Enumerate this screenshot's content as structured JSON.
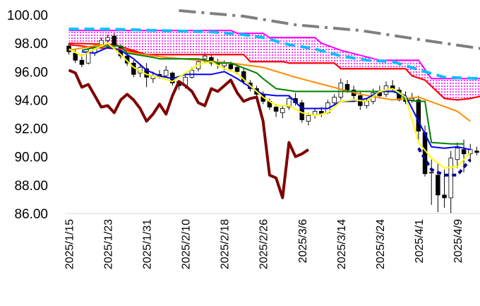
{
  "chart_data": {
    "type": "candlestick",
    "ylim": [
      86.0,
      100.0
    ],
    "y_ticks": [
      "86.00",
      "88.00",
      "90.00",
      "92.00",
      "94.00",
      "96.00",
      "98.00",
      "100.00"
    ],
    "x_ticks": [
      "2025/1/15",
      "2025/1/23",
      "2025/1/31",
      "2025/2/10",
      "2025/2/18",
      "2025/2/26",
      "2025/3/6",
      "2025/3/14",
      "2025/3/24",
      "2025/4/1",
      "2025/4/9"
    ],
    "grid": false,
    "n_slots": 64,
    "candles": [
      [
        97.8,
        98.0,
        97.2,
        97.4
      ],
      [
        97.3,
        97.6,
        96.6,
        96.8
      ],
      [
        96.8,
        97.2,
        96.3,
        96.5
      ],
      [
        96.6,
        97.6,
        96.5,
        97.4
      ],
      [
        97.3,
        97.9,
        97.1,
        97.7
      ],
      [
        97.8,
        98.4,
        97.6,
        98.2
      ],
      [
        98.2,
        98.6,
        97.9,
        98.4
      ],
      [
        98.5,
        98.7,
        97.8,
        97.9
      ],
      [
        97.8,
        97.9,
        96.9,
        97.1
      ],
      [
        97.1,
        97.3,
        96.4,
        96.6
      ],
      [
        96.6,
        96.8,
        95.6,
        95.8
      ],
      [
        95.9,
        96.5,
        95.6,
        96.3
      ],
      [
        96.2,
        96.6,
        94.9,
        95.6
      ],
      [
        95.5,
        96.0,
        95.2,
        95.7
      ],
      [
        95.8,
        96.1,
        95.5,
        95.6
      ],
      [
        95.7,
        96.4,
        95.6,
        96.1
      ],
      [
        95.9,
        96.0,
        95.0,
        95.2
      ],
      [
        95.3,
        95.4,
        94.7,
        95.0
      ],
      [
        95.0,
        95.8,
        94.8,
        95.6
      ],
      [
        95.6,
        96.3,
        95.5,
        96.1
      ],
      [
        96.2,
        96.9,
        96.0,
        96.7
      ],
      [
        96.9,
        97.3,
        96.6,
        97.1
      ],
      [
        97.0,
        97.2,
        96.4,
        96.6
      ],
      [
        96.6,
        96.9,
        96.2,
        96.5
      ],
      [
        96.4,
        96.8,
        96.1,
        96.6
      ],
      [
        96.5,
        96.7,
        96.0,
        96.2
      ],
      [
        96.3,
        96.5,
        95.8,
        96.0
      ],
      [
        96.0,
        96.2,
        95.1,
        95.3
      ],
      [
        95.2,
        95.4,
        94.6,
        94.8
      ],
      [
        94.8,
        95.0,
        94.2,
        94.4
      ],
      [
        94.4,
        94.6,
        93.7,
        93.9
      ],
      [
        93.9,
        94.1,
        93.3,
        93.5
      ],
      [
        93.5,
        93.7,
        92.8,
        93.2
      ],
      [
        93.1,
        93.6,
        92.7,
        93.4
      ],
      [
        93.5,
        94.3,
        93.3,
        94.1
      ],
      [
        94.1,
        94.5,
        93.6,
        93.8
      ],
      [
        93.8,
        94.0,
        92.4,
        92.6
      ],
      [
        92.5,
        93.1,
        92.2,
        92.9
      ],
      [
        92.9,
        93.4,
        92.7,
        93.2
      ],
      [
        93.2,
        93.5,
        92.8,
        93.0
      ],
      [
        93.1,
        94.0,
        93.0,
        93.8
      ],
      [
        93.8,
        94.4,
        93.6,
        94.2
      ],
      [
        94.2,
        95.5,
        94.0,
        95.2
      ],
      [
        95.1,
        95.4,
        94.5,
        94.7
      ],
      [
        94.7,
        95.0,
        94.0,
        94.3
      ],
      [
        94.3,
        94.6,
        93.3,
        93.6
      ],
      [
        93.6,
        94.1,
        93.4,
        93.9
      ],
      [
        93.9,
        94.8,
        93.7,
        94.5
      ],
      [
        94.5,
        95.0,
        94.1,
        94.3
      ],
      [
        94.4,
        95.3,
        94.2,
        95.0
      ],
      [
        95.0,
        95.4,
        94.6,
        94.8
      ],
      [
        94.7,
        94.9,
        93.9,
        94.0
      ],
      [
        94.0,
        94.6,
        93.7,
        93.9
      ],
      [
        94.0,
        94.5,
        93.8,
        94.1
      ],
      [
        94.0,
        94.3,
        91.2,
        91.8
      ],
      [
        91.7,
        92.2,
        88.6,
        88.8
      ],
      [
        88.9,
        89.8,
        86.6,
        88.9
      ],
      [
        88.7,
        89.6,
        86.1,
        87.3
      ],
      [
        87.3,
        89.1,
        86.4,
        87.1
      ],
      [
        87.1,
        90.4,
        86.0,
        89.9
      ],
      [
        89.8,
        91.0,
        89.2,
        90.6
      ],
      [
        90.5,
        91.2,
        88.9,
        90.2
      ],
      [
        90.2,
        90.9,
        89.6,
        90.5
      ],
      [
        90.4,
        90.7,
        90.1,
        90.3
      ]
    ],
    "series": [
      {
        "color": "#7f0000",
        "dash": "solid",
        "width": 4,
        "points": [
          [
            0,
            96.1
          ],
          [
            1,
            95.9
          ],
          [
            2,
            94.9
          ],
          [
            3,
            95.1
          ],
          [
            4,
            94.3
          ],
          [
            5,
            93.5
          ],
          [
            6,
            93.6
          ],
          [
            7,
            93.1
          ],
          [
            8,
            94.0
          ],
          [
            9,
            94.4
          ],
          [
            10,
            94.0
          ],
          [
            11,
            93.4
          ],
          [
            12,
            92.5
          ],
          [
            13,
            93.0
          ],
          [
            14,
            93.7
          ],
          [
            15,
            93.0
          ],
          [
            16,
            94.3
          ],
          [
            17,
            95.3
          ],
          [
            18,
            95.0
          ],
          [
            19,
            94.6
          ],
          [
            20,
            93.8
          ],
          [
            21,
            93.6
          ],
          [
            22,
            94.8
          ],
          [
            23,
            94.6
          ],
          [
            24,
            95.0
          ],
          [
            25,
            95.4
          ],
          [
            26,
            94.5
          ],
          [
            27,
            93.9
          ],
          [
            28,
            94.1
          ],
          [
            29,
            94.2
          ],
          [
            30,
            92.5
          ],
          [
            31,
            88.7
          ],
          [
            32,
            88.5
          ],
          [
            33,
            87.1
          ],
          [
            34,
            91.0
          ],
          [
            35,
            90.0
          ],
          [
            36,
            90.2
          ],
          [
            37,
            90.5
          ]
        ]
      },
      {
        "color": "#00008b",
        "dash": "6,5",
        "width": 4,
        "points": [
          [
            54,
            90.6
          ],
          [
            56,
            89.1
          ],
          [
            58,
            88.7
          ],
          [
            60,
            88.7
          ],
          [
            62,
            89.8
          ]
        ]
      },
      {
        "color": "#7f7f7f",
        "dash": "24,8,4,8",
        "width": 4,
        "points": [
          [
            17,
            100.3
          ],
          [
            27,
            99.9
          ],
          [
            35,
            99.3
          ],
          [
            45,
            98.9
          ],
          [
            55,
            98.2
          ],
          [
            64,
            97.6
          ]
        ]
      },
      {
        "color": "#ff0000",
        "dash": "solid",
        "width": 2,
        "points": [
          [
            0,
            97.9
          ],
          [
            4,
            97.7
          ],
          [
            8,
            97.6
          ],
          [
            12,
            97.2
          ],
          [
            20,
            97.2
          ],
          [
            27,
            97.2
          ],
          [
            28,
            96.7
          ],
          [
            33,
            96.7
          ],
          [
            34,
            96.6
          ],
          [
            41,
            96.6
          ],
          [
            42,
            96.2
          ],
          [
            52,
            96.2
          ],
          [
            53,
            95.7
          ],
          [
            55,
            95.4
          ],
          [
            58,
            94.1
          ],
          [
            60,
            94.0
          ],
          [
            62,
            94.1
          ],
          [
            64,
            94.3
          ]
        ]
      },
      {
        "color": "#ff8c00",
        "dash": "solid",
        "width": 2,
        "points": [
          [
            0,
            97.5
          ],
          [
            5,
            97.9
          ],
          [
            10,
            97.3
          ],
          [
            15,
            97.0
          ],
          [
            20,
            96.8
          ],
          [
            25,
            96.6
          ],
          [
            30,
            96.3
          ],
          [
            35,
            95.6
          ],
          [
            40,
            95.0
          ],
          [
            45,
            94.4
          ],
          [
            50,
            94.0
          ],
          [
            54,
            94.2
          ],
          [
            57,
            93.7
          ],
          [
            60,
            93.2
          ],
          [
            62,
            92.5
          ]
        ]
      },
      {
        "color": "#008000",
        "dash": "solid",
        "width": 2,
        "points": [
          [
            2,
            97.5
          ],
          [
            5,
            97.8
          ],
          [
            8,
            97.8
          ],
          [
            9,
            97.3
          ],
          [
            13,
            97.0
          ],
          [
            14,
            96.9
          ],
          [
            20,
            96.9
          ],
          [
            23,
            96.6
          ],
          [
            25,
            96.6
          ],
          [
            29,
            95.9
          ],
          [
            30,
            95.5
          ],
          [
            32,
            94.8
          ],
          [
            35,
            94.6
          ],
          [
            41,
            94.6
          ],
          [
            42,
            94.6
          ],
          [
            51,
            94.6
          ],
          [
            52,
            94.0
          ],
          [
            54,
            93.9
          ],
          [
            55,
            93.9
          ],
          [
            56,
            91.0
          ],
          [
            59,
            90.9
          ],
          [
            61,
            90.9
          ]
        ]
      },
      {
        "color": "#0000ff",
        "dash": "solid",
        "width": 2,
        "points": [
          [
            2,
            97.4
          ],
          [
            4,
            97.3
          ],
          [
            6,
            97.7
          ],
          [
            8,
            97.5
          ],
          [
            10,
            96.9
          ],
          [
            12,
            96.1
          ],
          [
            14,
            95.7
          ],
          [
            16,
            95.5
          ],
          [
            18,
            95.8
          ],
          [
            20,
            95.8
          ],
          [
            22,
            95.8
          ],
          [
            24,
            96.0
          ],
          [
            26,
            95.5
          ],
          [
            28,
            94.9
          ],
          [
            30,
            94.4
          ],
          [
            32,
            94.3
          ],
          [
            34,
            94.3
          ],
          [
            36,
            93.4
          ],
          [
            38,
            93.4
          ],
          [
            40,
            93.4
          ],
          [
            42,
            93.9
          ],
          [
            44,
            93.9
          ],
          [
            46,
            94.1
          ],
          [
            48,
            94.6
          ],
          [
            50,
            94.6
          ],
          [
            52,
            94.3
          ],
          [
            54,
            92.5
          ],
          [
            56,
            90.7
          ],
          [
            58,
            90.6
          ],
          [
            60,
            90.7
          ],
          [
            62,
            90.5
          ]
        ]
      },
      {
        "color": "#ffff00",
        "dash": "solid",
        "width": 2,
        "points": [
          [
            0,
            97.6
          ],
          [
            2,
            97.1
          ],
          [
            4,
            97.6
          ],
          [
            6,
            98.0
          ],
          [
            8,
            97.2
          ],
          [
            10,
            96.3
          ],
          [
            12,
            95.8
          ],
          [
            14,
            95.6
          ],
          [
            16,
            95.3
          ],
          [
            18,
            95.9
          ],
          [
            20,
            96.5
          ],
          [
            22,
            96.7
          ],
          [
            24,
            96.2
          ],
          [
            26,
            95.9
          ],
          [
            28,
            95.0
          ],
          [
            30,
            94.2
          ],
          [
            32,
            93.6
          ],
          [
            34,
            93.6
          ],
          [
            36,
            93.1
          ],
          [
            38,
            92.9
          ],
          [
            40,
            93.1
          ],
          [
            42,
            93.9
          ],
          [
            44,
            94.0
          ],
          [
            46,
            93.9
          ],
          [
            48,
            94.6
          ],
          [
            50,
            94.8
          ],
          [
            52,
            94.2
          ],
          [
            54,
            91.0
          ],
          [
            56,
            89.9
          ],
          [
            58,
            89.2
          ],
          [
            60,
            89.3
          ],
          [
            62,
            90.3
          ]
        ]
      }
    ],
    "cloud": {
      "span_a": {
        "color": "#ff00ff",
        "dash": "solid",
        "width": 2,
        "points": [
          [
            0,
            98.9
          ],
          [
            14,
            98.9
          ],
          [
            15,
            98.9
          ],
          [
            25,
            98.9
          ],
          [
            26,
            98.7
          ],
          [
            30,
            98.7
          ],
          [
            31,
            98.4
          ],
          [
            38,
            98.4
          ],
          [
            39,
            98.0
          ],
          [
            42,
            97.5
          ],
          [
            48,
            96.8
          ],
          [
            54,
            96.8
          ],
          [
            56,
            95.5
          ],
          [
            64,
            95.5
          ]
        ]
      },
      "span_b": {
        "color": "#00bfff",
        "dash": "14,8",
        "width": 4,
        "points": [
          [
            0,
            99.0
          ],
          [
            6,
            99.0
          ],
          [
            14,
            98.9
          ],
          [
            22,
            98.8
          ],
          [
            27,
            98.6
          ],
          [
            30,
            98.4
          ],
          [
            34,
            97.9
          ],
          [
            38,
            97.6
          ],
          [
            42,
            97.1
          ],
          [
            46,
            96.8
          ],
          [
            50,
            96.7
          ],
          [
            55,
            96.0
          ],
          [
            58,
            95.6
          ],
          [
            64,
            95.5
          ]
        ]
      },
      "lower": {
        "color": "#ff0000",
        "dash": "solid",
        "width": 2,
        "points": [
          [
            0,
            98.0
          ],
          [
            7,
            97.9
          ],
          [
            12,
            97.2
          ],
          [
            20,
            97.2
          ],
          [
            27,
            97.2
          ],
          [
            28,
            96.7
          ],
          [
            33,
            96.7
          ],
          [
            34,
            96.6
          ],
          [
            41,
            96.6
          ],
          [
            42,
            96.2
          ],
          [
            52,
            96.2
          ],
          [
            53,
            95.7
          ],
          [
            55,
            95.4
          ],
          [
            58,
            94.1
          ],
          [
            60,
            94.0
          ],
          [
            62,
            94.1
          ],
          [
            64,
            94.3
          ]
        ]
      },
      "fill": "#ff00ff"
    }
  }
}
